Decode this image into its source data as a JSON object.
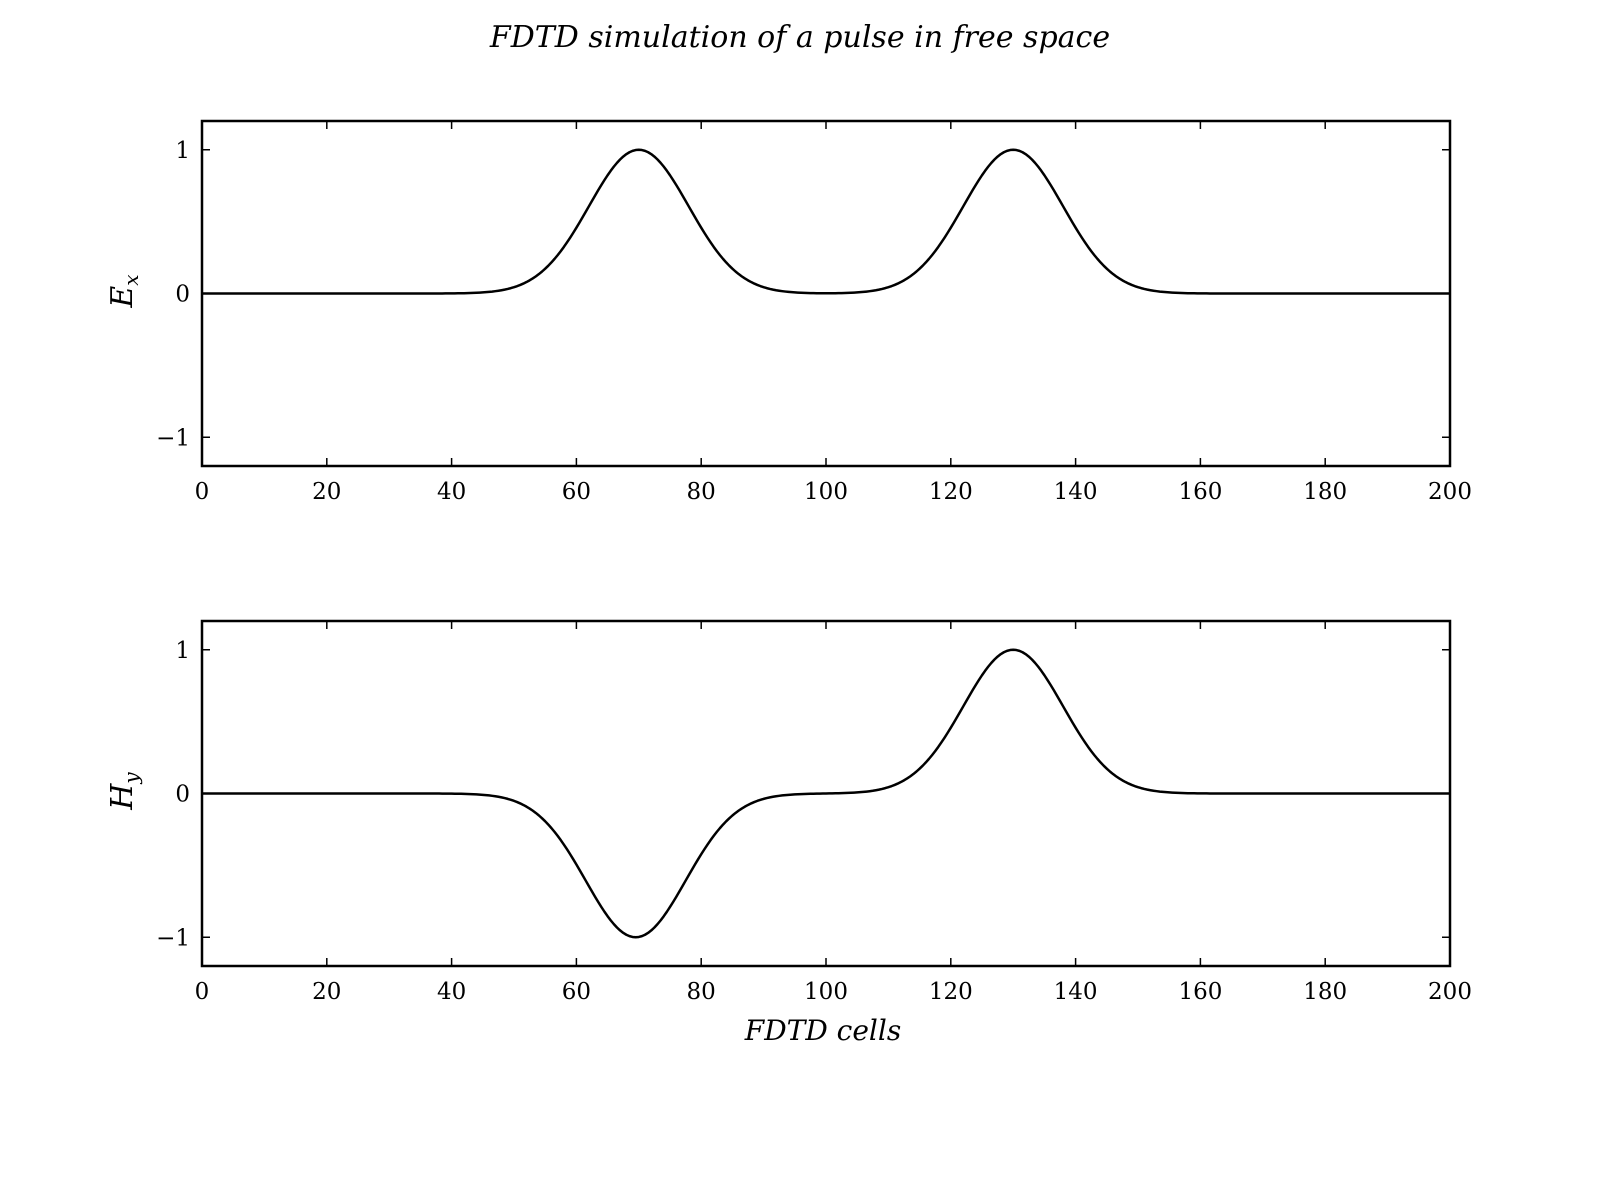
{
  "title": "FDTD simulation of a pulse in free space",
  "chart_data": [
    {
      "type": "line",
      "ylabel_main": "E",
      "ylabel_sub": "x",
      "xlabel": "",
      "xlim": [
        0,
        200
      ],
      "ylim": [
        -1.2,
        1.2
      ],
      "xticks": [
        0,
        20,
        40,
        60,
        80,
        100,
        120,
        140,
        160,
        180,
        200
      ],
      "yticks": [
        -1,
        0,
        1
      ],
      "ytick_labels": [
        "−1",
        "0",
        "1"
      ],
      "grid": false,
      "series": [
        {
          "pulses": [
            {
              "center": 70,
              "amplitude": 1,
              "width": 8
            },
            {
              "center": 130,
              "amplitude": 1,
              "width": 8
            }
          ],
          "color": "#000000"
        }
      ]
    },
    {
      "type": "line",
      "ylabel_main": "H",
      "ylabel_sub": "y",
      "xlabel": "FDTD cells",
      "xlim": [
        0,
        200
      ],
      "ylim": [
        -1.2,
        1.2
      ],
      "xticks": [
        0,
        20,
        40,
        60,
        80,
        100,
        120,
        140,
        160,
        180,
        200
      ],
      "yticks": [
        -1,
        0,
        1
      ],
      "ytick_labels": [
        "−1",
        "0",
        "1"
      ],
      "grid": false,
      "series": [
        {
          "pulses": [
            {
              "center": 69.5,
              "amplitude": -1,
              "width": 8
            },
            {
              "center": 130,
              "amplitude": 1,
              "width": 8
            }
          ],
          "color": "#000000"
        }
      ]
    }
  ]
}
